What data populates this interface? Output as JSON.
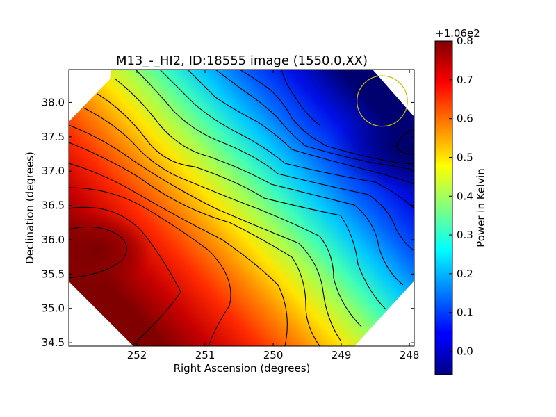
{
  "chart_data": {
    "type": "heatmap",
    "title": "M13_-_HI2, ID:18555 image (1550.0,XX)",
    "xlabel": "Right Ascension (degrees)",
    "ylabel": "Declination (degrees)",
    "x_ticks": [
      {
        "value": 252,
        "label": "252"
      },
      {
        "value": 251,
        "label": "251"
      },
      {
        "value": 250,
        "label": "250"
      },
      {
        "value": 249,
        "label": "249"
      },
      {
        "value": 248,
        "label": "248"
      }
    ],
    "y_ticks": [
      {
        "value": 34.5,
        "label": "34.5"
      },
      {
        "value": 35.0,
        "label": "35.0"
      },
      {
        "value": 35.5,
        "label": "35.5"
      },
      {
        "value": 36.0,
        "label": "36.0"
      },
      {
        "value": 36.5,
        "label": "36.5"
      },
      {
        "value": 37.0,
        "label": "37.0"
      },
      {
        "value": 37.5,
        "label": "37.5"
      },
      {
        "value": 38.0,
        "label": "38.0"
      }
    ],
    "xlim": [
      253.0,
      247.93
    ],
    "ylim": [
      34.45,
      38.48
    ],
    "x_axis_reversed": true,
    "colormap": "jet",
    "colorbar": {
      "label": "Power in Kelvin",
      "offset_text": "+1.06e2",
      "offset": 106,
      "range": [
        -0.06,
        0.8
      ],
      "ticks": [
        {
          "value": 0.0,
          "label": "0.0"
        },
        {
          "value": 0.1,
          "label": "0.1"
        },
        {
          "value": 0.2,
          "label": "0.2"
        },
        {
          "value": 0.3,
          "label": "0.3"
        },
        {
          "value": 0.4,
          "label": "0.4"
        },
        {
          "value": 0.5,
          "label": "0.5"
        },
        {
          "value": 0.6,
          "label": "0.6"
        },
        {
          "value": 0.7,
          "label": "0.7"
        },
        {
          "value": 0.8,
          "label": "0.8"
        }
      ]
    },
    "field": {
      "gradient_direction": "lower-left high to upper-right low",
      "maximum": {
        "x": 252.6,
        "y": 35.85,
        "value": 0.78
      },
      "minimum": {
        "x": 248.0,
        "y": 37.3,
        "value": -0.05
      }
    },
    "contour_levels": [
      0.05,
      0.1,
      0.15,
      0.2,
      0.25,
      0.3,
      0.35,
      0.4,
      0.45,
      0.5,
      0.55,
      0.6,
      0.65,
      0.7,
      0.75
    ],
    "beam": {
      "shape": "circle",
      "center_ra": 248.4,
      "center_dec": 38.02,
      "radius_deg": 0.37,
      "color": "#c8c000"
    }
  }
}
